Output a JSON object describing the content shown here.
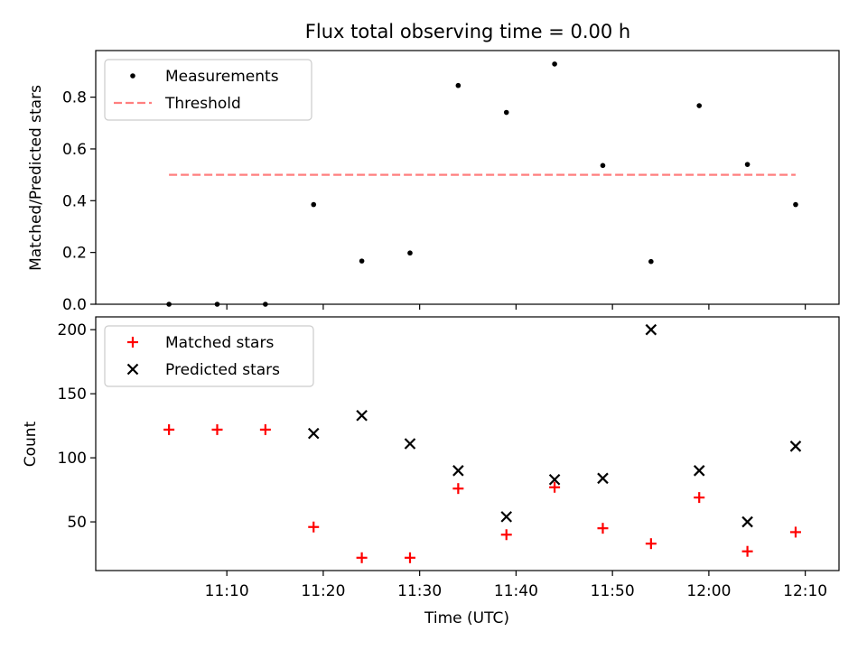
{
  "chart_data": [
    {
      "type": "scatter",
      "title": "Flux total observing time = 0.00 h",
      "xlabel": "",
      "ylabel": "Matched/Predicted stars",
      "ylim": [
        0,
        0.98
      ],
      "yticks": [
        "0.0",
        "0.2",
        "0.4",
        "0.6",
        "0.8"
      ],
      "legend": "upper-left",
      "x": [
        "11:04",
        "11:09",
        "11:14",
        "11:19",
        "11:24",
        "11:29",
        "11:34",
        "11:39",
        "11:44",
        "11:49",
        "11:54",
        "11:59",
        "12:04",
        "12:09"
      ],
      "series": [
        {
          "name": "Measurements",
          "marker": "dot",
          "color": "#000000",
          "values": [
            0.0,
            0.0,
            0.0,
            0.385,
            0.167,
            0.198,
            0.845,
            0.741,
            0.928,
            0.536,
            0.165,
            0.767,
            0.54,
            0.385
          ]
        },
        {
          "name": "Threshold",
          "marker": "dashed-line",
          "color": "#ff7f7f",
          "values": [
            0.5,
            0.5
          ]
        }
      ]
    },
    {
      "type": "scatter",
      "title": "",
      "xlabel": "Time (UTC)",
      "ylabel": "Count",
      "ylim": [
        12,
        210
      ],
      "yticks": [
        "50",
        "100",
        "150",
        "200"
      ],
      "xticks": [
        "11:10",
        "11:20",
        "11:30",
        "11:40",
        "11:50",
        "12:00",
        "12:10"
      ],
      "legend": "upper-left",
      "x": [
        "11:04",
        "11:09",
        "11:14",
        "11:19",
        "11:24",
        "11:29",
        "11:34",
        "11:39",
        "11:44",
        "11:49",
        "11:54",
        "11:59",
        "12:04",
        "12:09"
      ],
      "series": [
        {
          "name": "Matched stars",
          "marker": "plus",
          "color": "#ff0000",
          "values": [
            122,
            122,
            122,
            46,
            22,
            22,
            76,
            40,
            77,
            45,
            33,
            69,
            27,
            42
          ]
        },
        {
          "name": "Predicted stars",
          "marker": "x",
          "color": "#000000",
          "values": [
            null,
            null,
            null,
            119,
            133,
            111,
            90,
            54,
            83,
            84,
            200,
            90,
            50,
            109
          ]
        }
      ]
    }
  ]
}
